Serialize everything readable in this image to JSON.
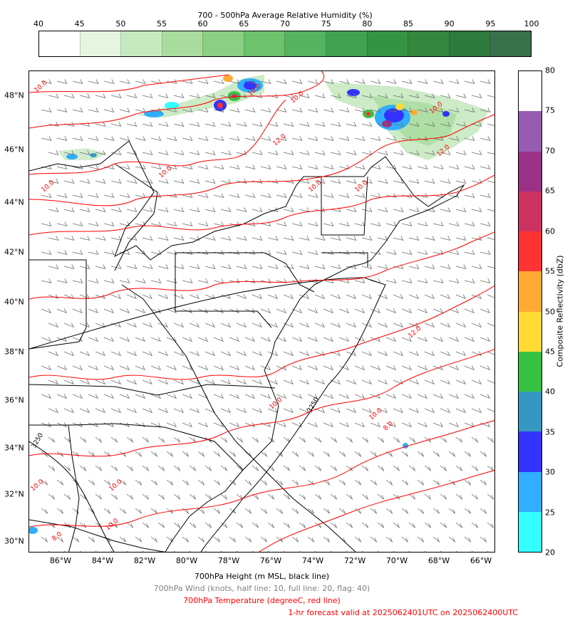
{
  "humidity_bar": {
    "title": "700 - 500hPa Average Relative Humidity (%)",
    "ticks": [
      "40",
      "45",
      "50",
      "55",
      "60",
      "65",
      "70",
      "75",
      "80",
      "85",
      "90",
      "95",
      "100"
    ],
    "colors": [
      "#ffffff",
      "#e5f5e0",
      "#c7e9c0",
      "#a9dc9e",
      "#8acf83",
      "#6cc26d",
      "#56b35f",
      "#41a352",
      "#359443",
      "#33873f",
      "#2f7a3d",
      "#38714c"
    ]
  },
  "reflectivity_bar": {
    "label": "Composite Reflectivity (dbZ)",
    "ticks": [
      "20",
      "25",
      "30",
      "35",
      "40",
      "45",
      "50",
      "55",
      "60",
      "65",
      "70",
      "75",
      "80"
    ],
    "colors": [
      "#33ffff",
      "#31aeff",
      "#3333ff",
      "#3598c3",
      "#38c242",
      "#ffdb33",
      "#ffab33",
      "#ff3333",
      "#cc3361",
      "#9a3187",
      "#955cb1",
      "#ffffff"
    ]
  },
  "map": {
    "lat_labels": [
      "48°N",
      "46°N",
      "44°N",
      "42°N",
      "40°N",
      "38°N",
      "36°N",
      "34°N",
      "32°N",
      "30°N"
    ],
    "lon_labels": [
      "86°W",
      "84°W",
      "82°W",
      "80°W",
      "78°W",
      "76°W",
      "74°W",
      "72°W",
      "70°W",
      "68°W",
      "66°W"
    ],
    "contour_labels": {
      "temp": [
        "10.0",
        "10.0",
        "12.0",
        "10.0",
        "10.0",
        "10.0",
        "10.0",
        "12.0",
        "10.0",
        "10.0",
        "12.0",
        "10.0",
        "8.0",
        "10.0",
        "10.0",
        "10.0",
        "10.0",
        "8.0"
      ],
      "height": [
        "3250",
        "3250"
      ]
    },
    "colors": {
      "temperature": "#ff0000",
      "height": "#000000",
      "wind": "#6e6e6e"
    }
  },
  "captions": {
    "height": "700hPa Height (m MSL, black line)",
    "wind": "700hPa Wind (knots, half line: 10, full line: 20, flag: 40)",
    "temperature": "700hPa Temperature (degreeC, red line)",
    "valid": "1-hr forecast valid at 2025062401UTC on 2025062400UTC"
  }
}
